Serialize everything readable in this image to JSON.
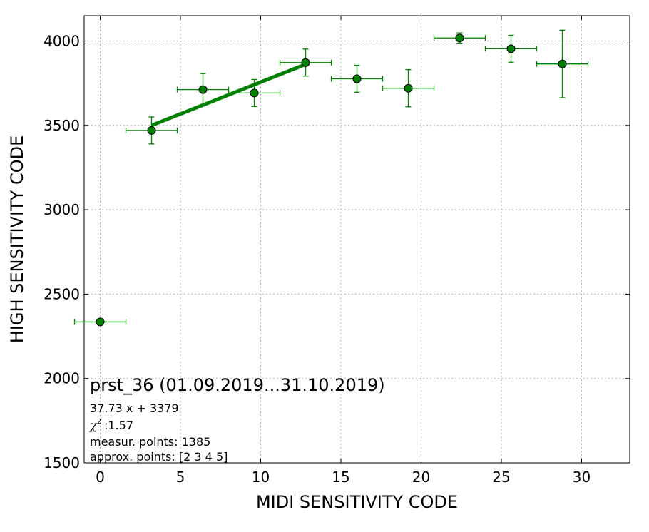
{
  "chart_data": {
    "type": "scatter",
    "xlabel": "MIDI SENSITIVITY CODE",
    "ylabel": "HIGH SENSITIVITY CODE",
    "xlim": [
      -1,
      33
    ],
    "ylim": [
      1500,
      4150
    ],
    "xticks": [
      0,
      5,
      10,
      15,
      20,
      25,
      30
    ],
    "yticks": [
      1500,
      2000,
      2500,
      3000,
      3500,
      4000
    ],
    "grid": true,
    "colors": {
      "series": "#008000",
      "marker_edge": "#000000"
    },
    "points": [
      {
        "x": 0,
        "y": 2335,
        "xerr": 1.6,
        "yerr": 0
      },
      {
        "x": 3.2,
        "y": 3470,
        "xerr": 1.6,
        "yerr": 80
      },
      {
        "x": 6.4,
        "y": 3712,
        "xerr": 1.6,
        "yerr": 95
      },
      {
        "x": 9.6,
        "y": 3692,
        "xerr": 1.6,
        "yerr": 80
      },
      {
        "x": 12.8,
        "y": 3872,
        "xerr": 1.6,
        "yerr": 80
      },
      {
        "x": 16.0,
        "y": 3776,
        "xerr": 1.6,
        "yerr": 80
      },
      {
        "x": 19.2,
        "y": 3720,
        "xerr": 1.6,
        "yerr": 110
      },
      {
        "x": 22.4,
        "y": 4018,
        "xerr": 1.6,
        "yerr": 30
      },
      {
        "x": 25.6,
        "y": 3954,
        "xerr": 1.6,
        "yerr": 80
      },
      {
        "x": 28.8,
        "y": 3864,
        "xerr": 1.6,
        "yerr": 200
      }
    ],
    "fit_line": {
      "x_start": 3.2,
      "x_end": 12.8,
      "slope": 37.73,
      "intercept": 3379
    },
    "annotations": {
      "title": "prst_36 (01.09.2019...31.10.2019)",
      "equation": "37.73 x + 3379",
      "chi2": ":1.57",
      "points_measured": "measur. points: 1385",
      "points_approx": "approx. points: [2 3 4 5]"
    }
  }
}
